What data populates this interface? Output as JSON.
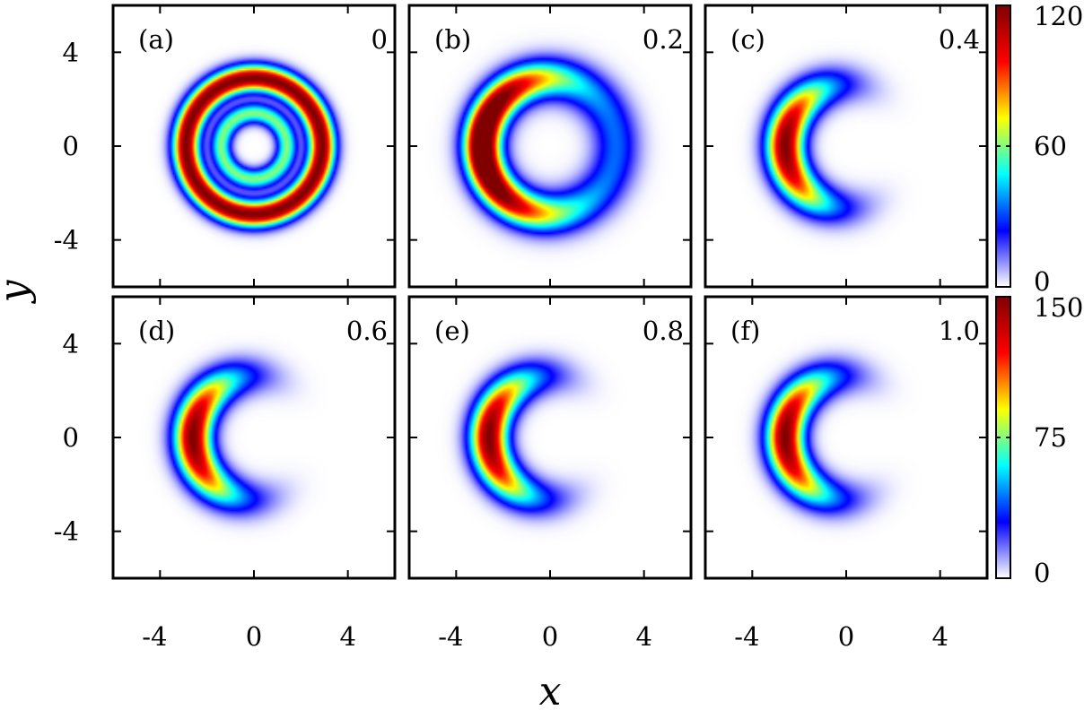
{
  "chart_data": {
    "type": "heatmap",
    "xlabel": "x",
    "ylabel": "y",
    "xlim": [
      -6,
      6
    ],
    "ylim": [
      -6,
      6
    ],
    "xticks": [
      -4,
      0,
      4
    ],
    "yticks": [
      -4,
      0,
      4
    ],
    "xtick_labels": [
      "-4",
      "0",
      "4"
    ],
    "ytick_labels": [
      "-4",
      "0",
      "4"
    ],
    "colormap": [
      "#ffffff",
      "#0000ff",
      "#00ffff",
      "#ffff00",
      "#ff0000",
      "#800000"
    ],
    "panels": [
      {
        "tag": "(a)",
        "param": "0",
        "shape": "double-ring",
        "peak": 120,
        "colorbar_row": 0
      },
      {
        "tag": "(b)",
        "param": "0.2",
        "shape": "ring-crescent",
        "peak": 120,
        "colorbar_row": 0
      },
      {
        "tag": "(c)",
        "param": "0.4",
        "shape": "crescent",
        "peak": 120,
        "colorbar_row": 0
      },
      {
        "tag": "(d)",
        "param": "0.6",
        "shape": "crescent",
        "peak": 150,
        "colorbar_row": 1
      },
      {
        "tag": "(e)",
        "param": "0.8",
        "shape": "crescent",
        "peak": 150,
        "colorbar_row": 1
      },
      {
        "tag": "(f)",
        "param": "1.0",
        "shape": "crescent",
        "peak": 150,
        "colorbar_row": 1
      }
    ],
    "colorbars": [
      {
        "min": 0,
        "max": 120,
        "ticks": [
          "0",
          "60",
          "120"
        ]
      },
      {
        "min": 0,
        "max": 150,
        "ticks": [
          "0",
          "75",
          "150"
        ]
      }
    ]
  }
}
